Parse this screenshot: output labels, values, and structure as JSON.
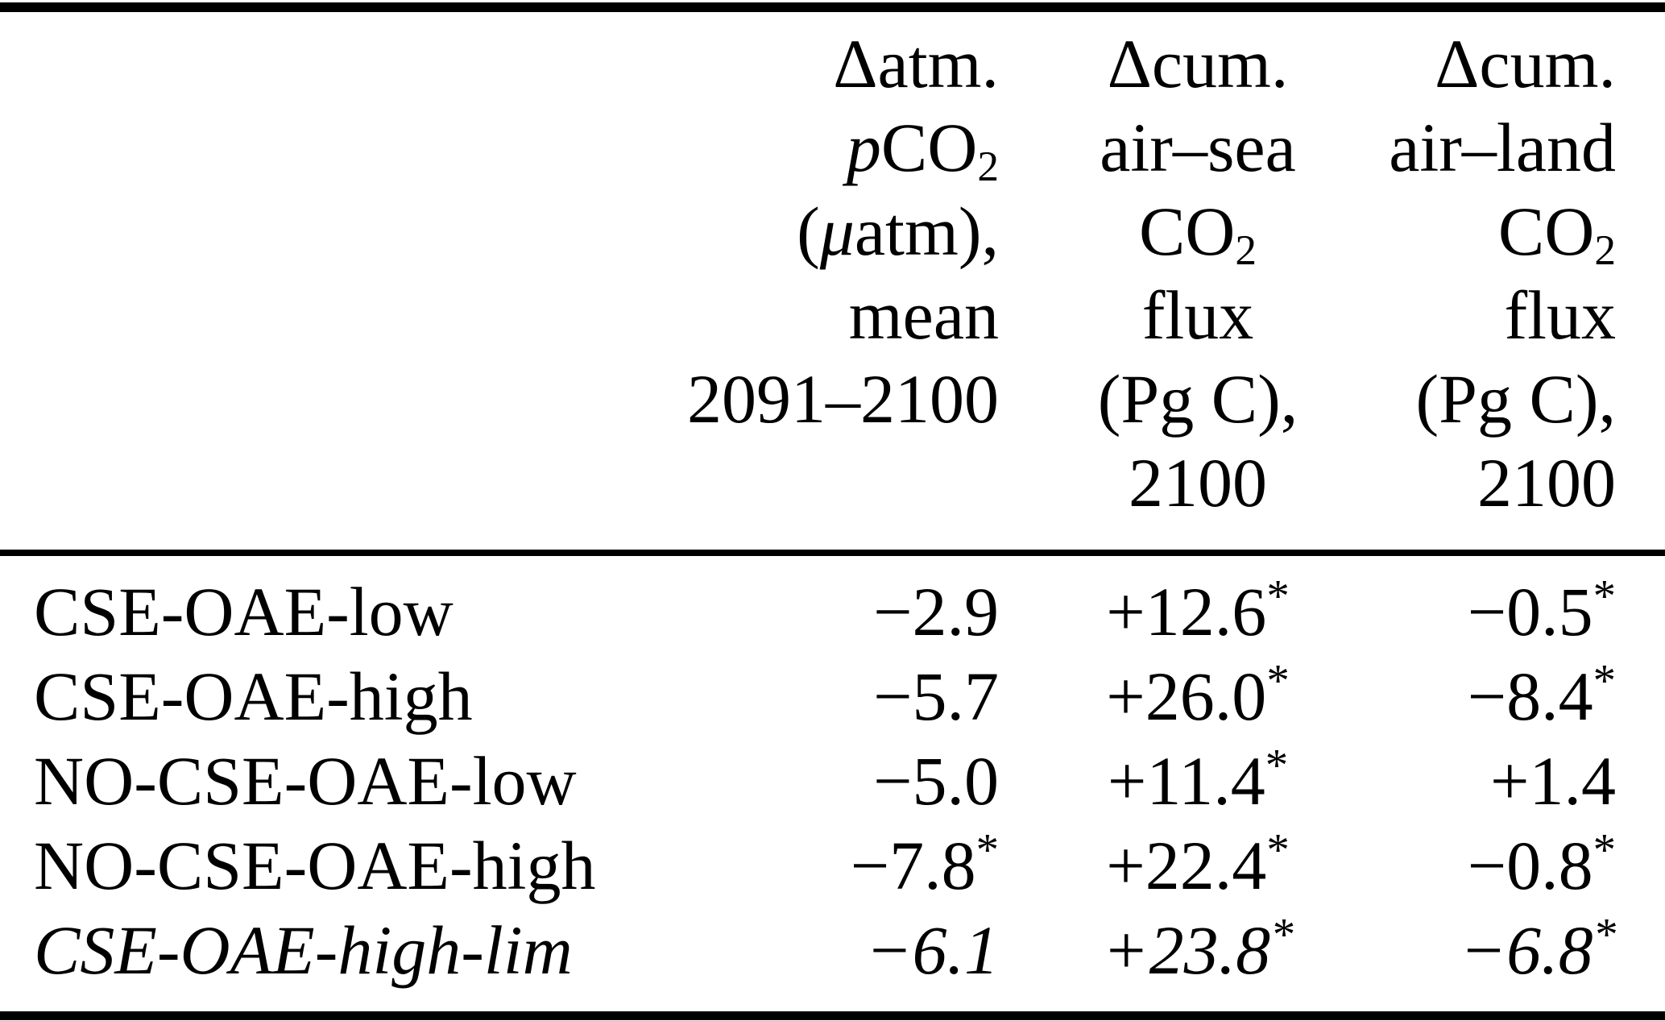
{
  "header": {
    "col1": {
      "l1": "Δatm.",
      "l2_p": "p",
      "l2_main": "CO",
      "l2_sub": "2",
      "l3_open": "(",
      "l3_mu": "μ",
      "l3_rest": "atm),",
      "l4": "mean",
      "l5": "2091–2100"
    },
    "col2": {
      "l1": "Δcum.",
      "l2": "air–sea",
      "l3_main": "CO",
      "l3_sub": "2",
      "l4": "flux",
      "l5": "(Pg C),",
      "l6": "2100"
    },
    "col3": {
      "l1": "Δcum.",
      "l2": "air–land",
      "l3_main": "CO",
      "l3_sub": "2",
      "l4": "flux",
      "l5": "(Pg C),",
      "l6": "2100"
    }
  },
  "rows": [
    {
      "label": "CSE-OAE-low",
      "c1": "−2.9",
      "c1s": "",
      "c2": "+12.6",
      "c2s": "*",
      "c3": "−0.5",
      "c3s": "*"
    },
    {
      "label": "CSE-OAE-high",
      "c1": "−5.7",
      "c1s": "",
      "c2": "+26.0",
      "c2s": "*",
      "c3": "−8.4",
      "c3s": "*"
    },
    {
      "label": "NO-CSE-OAE-low",
      "c1": "−5.0",
      "c1s": "",
      "c2": "+11.4",
      "c2s": "*",
      "c3": "+1.4",
      "c3s": ""
    },
    {
      "label": "NO-CSE-OAE-high",
      "c1": "−7.8",
      "c1s": "*",
      "c2": "+22.4",
      "c2s": "*",
      "c3": "−0.8",
      "c3s": "*"
    },
    {
      "label": "CSE-OAE-high-lim",
      "c1": "−6.1",
      "c1s": "",
      "c2": "+23.8",
      "c2s": "*",
      "c3": "−6.8",
      "c3s": "*"
    }
  ]
}
